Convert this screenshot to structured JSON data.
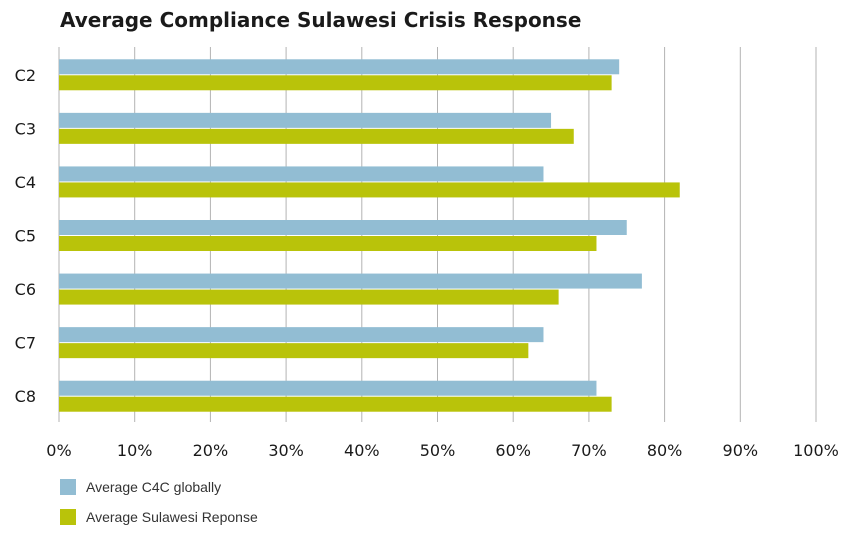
{
  "chart_data": {
    "type": "bar",
    "orientation": "horizontal",
    "title": "Average Compliance Sulawesi Crisis Response",
    "categories": [
      "C2",
      "C3",
      "C4",
      "C5",
      "C6",
      "C7",
      "C8"
    ],
    "series": [
      {
        "name": "Average C4C globally",
        "values": [
          74,
          65,
          64,
          75,
          77,
          64,
          71
        ],
        "color": "#92bdd3"
      },
      {
        "name": "Average Sulawesi Reponse",
        "values": [
          73,
          68,
          82,
          71,
          66,
          62,
          73
        ],
        "color": "#b9c30a"
      }
    ],
    "x_ticks": [
      "0%",
      "10%",
      "20%",
      "30%",
      "40%",
      "50%",
      "60%",
      "70%",
      "80%",
      "90%",
      "100%"
    ],
    "xlim": [
      0,
      100
    ],
    "grid": "vertical",
    "legend_position": "bottom-left"
  }
}
